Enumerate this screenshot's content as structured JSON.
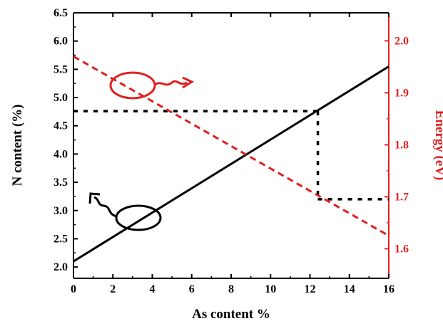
{
  "chart_data": {
    "type": "line",
    "xlabel": "As content %",
    "ylabel_left": "N content (%)",
    "ylabel_right": "Energy (eV)",
    "xlim": [
      0,
      16
    ],
    "ylim_left": [
      1.8,
      6.5
    ],
    "ylim_right": [
      1.543,
      2.054
    ],
    "x_ticks": [
      "0",
      "2",
      "4",
      "6",
      "8",
      "10",
      "12",
      "14",
      "16"
    ],
    "y_left_ticks": [
      "2.0",
      "2.5",
      "3.0",
      "3.5",
      "4.0",
      "4.5",
      "5.0",
      "5.5",
      "6.0",
      "6.5"
    ],
    "y_right_ticks": [
      "1.6",
      "1.7",
      "1.8",
      "1.9",
      "2.0"
    ],
    "series": [
      {
        "axis": "left",
        "style": "solid",
        "color": "#000000",
        "x": [
          0,
          16
        ],
        "y": [
          2.1,
          5.55
        ]
      },
      {
        "axis": "right",
        "style": "dashed",
        "color": "#e02020",
        "x": [
          0,
          16
        ],
        "y": [
          1.97,
          1.625
        ]
      }
    ],
    "guides": [
      {
        "style": "dotted",
        "color": "#000000",
        "axis": "left",
        "x": [
          0,
          12.4
        ],
        "y": [
          4.76,
          4.76
        ]
      },
      {
        "style": "dotted",
        "color": "#000000",
        "axis": "left",
        "x": [
          12.4,
          12.4
        ],
        "y": [
          4.76,
          3.2
        ]
      },
      {
        "style": "dotted",
        "color": "#000000",
        "axis": "left",
        "x": [
          12.4,
          16
        ],
        "y": [
          3.2,
          3.2
        ]
      }
    ],
    "grid": false,
    "colors": {
      "left_axis": "#000000",
      "right_axis": "#e02020"
    }
  }
}
